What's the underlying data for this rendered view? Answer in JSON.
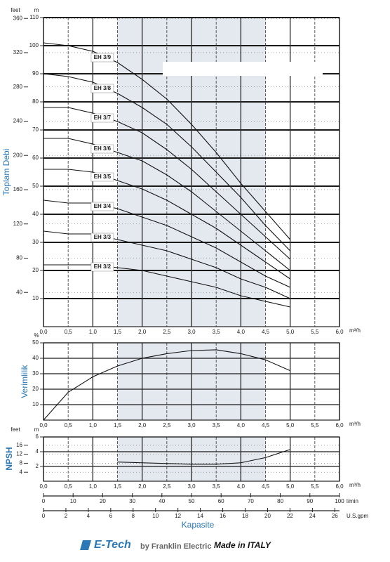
{
  "chart_data": [
    {
      "type": "line",
      "y_unit_label": "m",
      "y2_unit_label": "feet",
      "y_axis_label": "Toplam Debi",
      "x_unit_label": "m³/h",
      "x": [
        0,
        0.5,
        1.0,
        1.5,
        2.0,
        2.5,
        3.0,
        3.5,
        4.0,
        4.5,
        5.0
      ],
      "series": [
        {
          "name": "EH 3/9",
          "color": "#111111",
          "values": [
            101,
            100,
            98,
            94,
            88,
            81,
            72,
            62,
            51,
            41,
            31
          ]
        },
        {
          "name": "EH 3/8",
          "color": "#111111",
          "values": [
            90,
            89,
            87,
            83,
            78,
            72,
            64,
            55,
            46,
            36,
            27
          ]
        },
        {
          "name": "EH 3/7",
          "color": "#111111",
          "values": [
            78,
            78,
            76,
            73,
            69,
            63,
            56,
            48,
            40,
            32,
            24
          ]
        },
        {
          "name": "EH 3/6",
          "color": "#111111",
          "values": [
            67,
            67,
            65,
            62,
            59,
            54,
            48,
            41,
            34,
            27,
            20
          ]
        },
        {
          "name": "EH 3/5",
          "color": "#111111",
          "values": [
            56,
            56,
            55,
            52,
            49,
            45,
            40,
            35,
            29,
            23,
            17
          ]
        },
        {
          "name": "EH 3/4",
          "color": "#111111",
          "values": [
            45,
            44,
            44,
            42,
            39,
            36,
            32,
            28,
            23,
            18,
            14
          ]
        },
        {
          "name": "EH 3/3",
          "color": "#111111",
          "values": [
            34,
            33,
            33,
            31,
            29,
            27,
            24,
            21,
            17,
            14,
            10
          ]
        },
        {
          "name": "EH 3/2",
          "color": "#111111",
          "values": [
            22,
            22,
            22,
            21,
            20,
            18,
            16,
            14,
            11,
            9,
            7
          ]
        }
      ],
      "xlim": [
        0,
        6.0
      ],
      "xticks": [
        {
          "value": 0,
          "label": "0,0"
        },
        {
          "value": 0.5,
          "label": "0,5"
        },
        {
          "value": 1.0,
          "label": "1,0"
        },
        {
          "value": 1.5,
          "label": "1,5"
        },
        {
          "value": 2.0,
          "label": "2,0"
        },
        {
          "value": 2.5,
          "label": "2,5"
        },
        {
          "value": 3.0,
          "label": "3,0"
        },
        {
          "value": 3.5,
          "label": "3,5"
        },
        {
          "value": 4.0,
          "label": "4,0"
        },
        {
          "value": 4.5,
          "label": "4,5"
        },
        {
          "value": 5.0,
          "label": "5,0"
        },
        {
          "value": 5.5,
          "label": "5,5"
        },
        {
          "value": 6.0,
          "label": "6,0"
        }
      ],
      "ylim": [
        0,
        110
      ],
      "yticks": [
        10,
        20,
        30,
        40,
        50,
        60,
        70,
        80,
        90,
        100,
        110
      ],
      "y2lim": [
        0,
        361
      ],
      "y2ticks": [
        40,
        80,
        120,
        160,
        200,
        240,
        280,
        320,
        360
      ],
      "shaded_range": [
        1.5,
        4.5
      ],
      "grid": true
    },
    {
      "type": "line",
      "y_unit_label": "%",
      "y_axis_label": "Verimlilik",
      "x_unit_label": "m³/h",
      "x": [
        0,
        0.5,
        1.0,
        1.5,
        2.0,
        2.5,
        3.0,
        3.5,
        4.0,
        4.5,
        5.0
      ],
      "series": [
        {
          "name": "Verimlilik",
          "color": "#111111",
          "values": [
            0,
            18,
            28,
            35,
            40,
            43,
            45,
            45.5,
            43,
            39,
            32
          ]
        }
      ],
      "xlim": [
        0,
        6.0
      ],
      "xticks": [
        {
          "value": 0,
          "label": "0,0"
        },
        {
          "value": 0.5,
          "label": "0,5"
        },
        {
          "value": 1.0,
          "label": "1,0"
        },
        {
          "value": 1.5,
          "label": "1,5"
        },
        {
          "value": 2.0,
          "label": "2,0"
        },
        {
          "value": 2.5,
          "label": "2,5"
        },
        {
          "value": 3.0,
          "label": "3,0"
        },
        {
          "value": 3.5,
          "label": "3,5"
        },
        {
          "value": 4.0,
          "label": "4,0"
        },
        {
          "value": 4.5,
          "label": "4,5"
        },
        {
          "value": 5.0,
          "label": "5,0"
        },
        {
          "value": 5.5,
          "label": "5,5"
        },
        {
          "value": 6.0,
          "label": "6,0"
        }
      ],
      "ylim": [
        0,
        50
      ],
      "yticks": [
        10,
        20,
        30,
        40,
        50
      ],
      "shaded_range": [
        1.5,
        4.5
      ],
      "grid": true
    },
    {
      "type": "line",
      "y_unit_label": "m",
      "y2_unit_label": "feet",
      "y_axis_label": "NPSH",
      "x_unit_label": "m³/h",
      "x": [
        1.5,
        2.0,
        2.5,
        3.0,
        3.5,
        4.0,
        4.5,
        5.0
      ],
      "series": [
        {
          "name": "NPSH",
          "color": "#111111",
          "values": [
            2.6,
            2.5,
            2.4,
            2.3,
            2.3,
            2.5,
            3.2,
            4.3
          ]
        }
      ],
      "xlim": [
        0,
        6.0
      ],
      "xticks": [
        {
          "value": 0,
          "label": "0,0"
        },
        {
          "value": 0.5,
          "label": "0,5"
        },
        {
          "value": 1.0,
          "label": "1,0"
        },
        {
          "value": 1.5,
          "label": "1,5"
        },
        {
          "value": 2.0,
          "label": "2,0"
        },
        {
          "value": 2.5,
          "label": "2,5"
        },
        {
          "value": 3.0,
          "label": "3,0"
        },
        {
          "value": 3.5,
          "label": "3,5"
        },
        {
          "value": 4.0,
          "label": "4,0"
        },
        {
          "value": 4.5,
          "label": "4,5"
        },
        {
          "value": 5.0,
          "label": "5,0"
        },
        {
          "value": 5.5,
          "label": "5,5"
        },
        {
          "value": 6.0,
          "label": "6,0"
        }
      ],
      "ylim": [
        0,
        6
      ],
      "yticks": [
        2,
        4,
        6
      ],
      "y2lim": [
        0,
        19.7
      ],
      "y2ticks": [
        4,
        8,
        12,
        16
      ],
      "shaded_range": [
        1.5,
        4.5
      ],
      "grid": true
    }
  ],
  "flow_axes": [
    {
      "unit_label": "l/min",
      "xlim": [
        0,
        100
      ],
      "xticks": [
        0,
        10,
        20,
        30,
        40,
        50,
        60,
        70,
        80,
        90,
        100
      ]
    },
    {
      "unit_label": "U.S.gpm",
      "xlim": [
        0,
        26.42
      ],
      "xticks": [
        0,
        2,
        4,
        6,
        8,
        10,
        12,
        14,
        16,
        18,
        20,
        22,
        24,
        26
      ]
    }
  ],
  "x_axis_title": "Kapasite",
  "footer": {
    "brand": "E-Tech",
    "company": "by Franklin Electric",
    "origin": "Made in ITALY"
  }
}
